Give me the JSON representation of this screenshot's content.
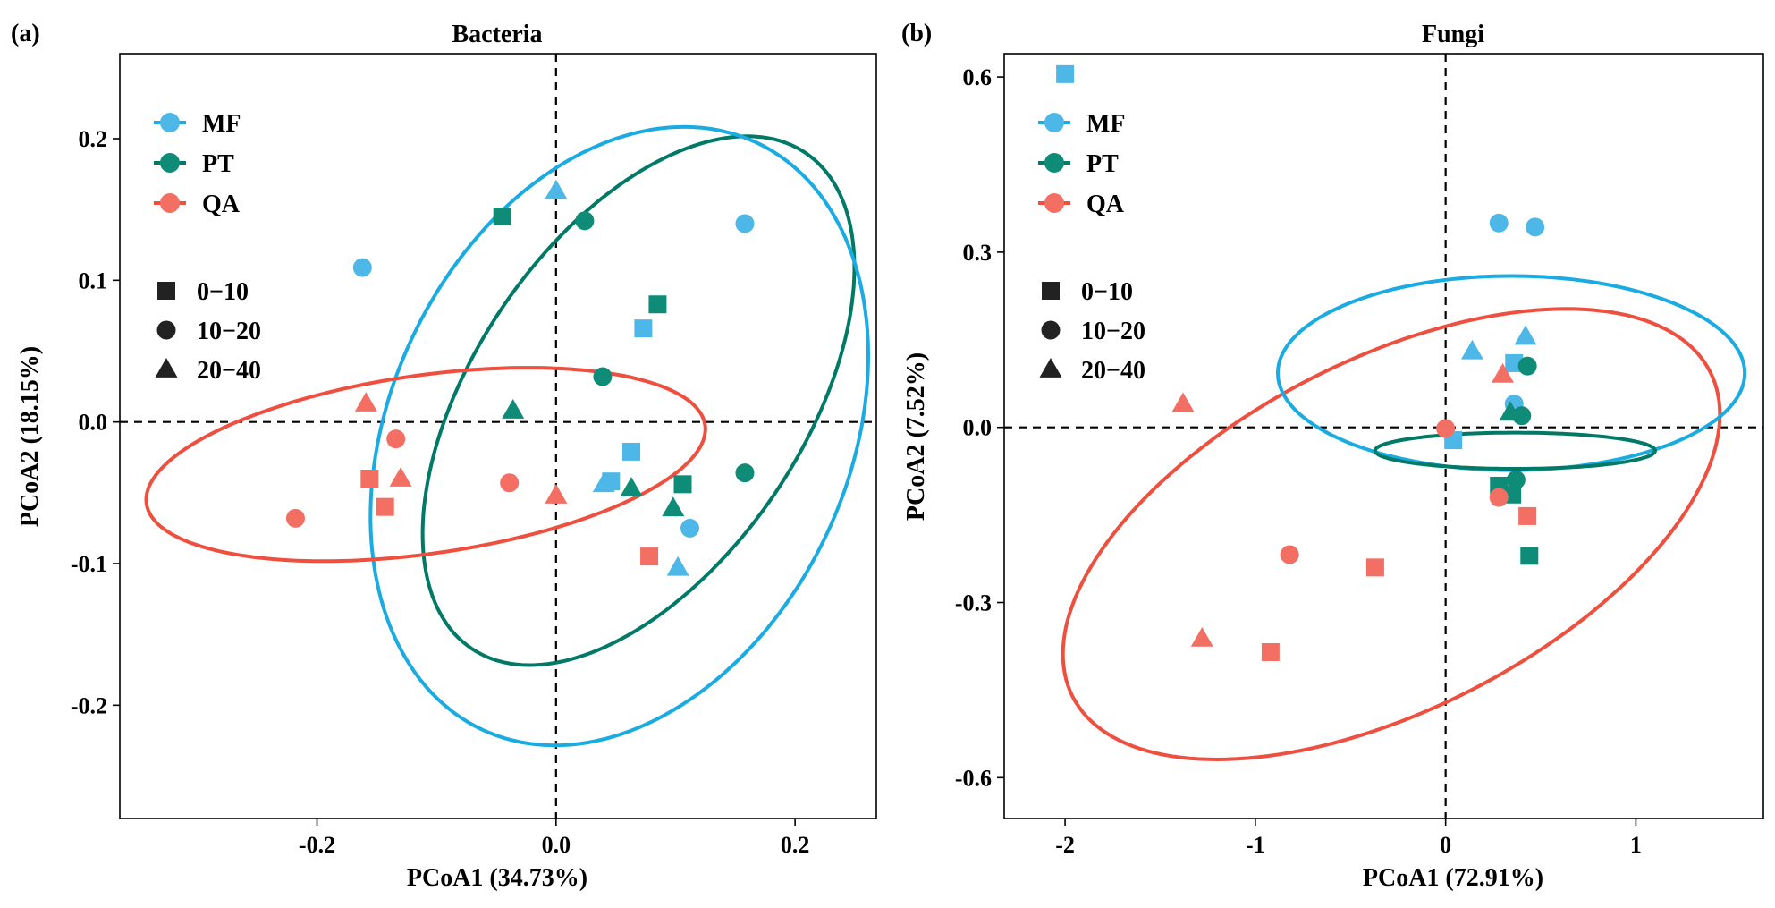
{
  "chart_data": [
    {
      "panel_label": "(a)",
      "title": "Bacteria",
      "type": "scatter",
      "xlabel": "PCoA1 (34.73%)",
      "ylabel": "PCoA2 (18.15%)",
      "xlim": [
        -0.365,
        0.268
      ],
      "ylim": [
        -0.28,
        0.26
      ],
      "xticks": [
        -0.2,
        0.0,
        0.2
      ],
      "xtick_labels": [
        "-0.2",
        "0.0",
        "0.2"
      ],
      "yticks": [
        -0.2,
        -0.1,
        0.0,
        0.1,
        0.2
      ],
      "ytick_labels": [
        "-0.2",
        "-0.1",
        "0.0",
        "0.1",
        "0.2"
      ],
      "reference_lines": {
        "x": 0,
        "y": 0
      },
      "legend_placement": "top-left",
      "groups": [
        {
          "name": "MF",
          "color": "#4DB8E8",
          "ellipse_color": "#1AABE2"
        },
        {
          "name": "PT",
          "color": "#0E8C78",
          "ellipse_color": "#007A66"
        },
        {
          "name": "QA",
          "color": "#F36F63",
          "ellipse_color": "#EF4F3F"
        }
      ],
      "depths": [
        {
          "name": "0−10",
          "shape": "square"
        },
        {
          "name": "10−20",
          "shape": "circle"
        },
        {
          "name": "20−40",
          "shape": "triangle"
        }
      ],
      "ellipses": [
        {
          "group": "PT",
          "cx": 0.069,
          "cy": 0.015,
          "rx": 0.25,
          "ry": 0.1165,
          "angle_deg": -56
        },
        {
          "group": "MF",
          "cx": 0.053,
          "cy": -0.01,
          "rx": 0.271,
          "ry": 0.162,
          "angle_deg": -65
        },
        {
          "group": "QA",
          "cx": -0.109,
          "cy": -0.03,
          "rx": 0.236,
          "ry": 0.063,
          "angle_deg": -8
        }
      ],
      "points": [
        {
          "group": "MF",
          "depth": "10−20",
          "x": -0.162,
          "y": 0.109
        },
        {
          "group": "MF",
          "depth": "20−40",
          "x": 0.0,
          "y": 0.163
        },
        {
          "group": "MF",
          "depth": "10−20",
          "x": 0.158,
          "y": 0.14
        },
        {
          "group": "MF",
          "depth": "0−10",
          "x": 0.073,
          "y": 0.066
        },
        {
          "group": "MF",
          "depth": "0−10",
          "x": 0.063,
          "y": -0.021
        },
        {
          "group": "MF",
          "depth": "20−40",
          "x": 0.04,
          "y": -0.044
        },
        {
          "group": "MF",
          "depth": "0−10",
          "x": 0.046,
          "y": -0.042
        },
        {
          "group": "MF",
          "depth": "10−20",
          "x": 0.112,
          "y": -0.075
        },
        {
          "group": "MF",
          "depth": "20−40",
          "x": 0.102,
          "y": -0.103
        },
        {
          "group": "PT",
          "depth": "0−10",
          "x": -0.045,
          "y": 0.145
        },
        {
          "group": "PT",
          "depth": "10−20",
          "x": 0.024,
          "y": 0.142
        },
        {
          "group": "PT",
          "depth": "0−10",
          "x": 0.085,
          "y": 0.083
        },
        {
          "group": "PT",
          "depth": "10−20",
          "x": 0.039,
          "y": 0.032
        },
        {
          "group": "PT",
          "depth": "20−40",
          "x": -0.036,
          "y": 0.008
        },
        {
          "group": "PT",
          "depth": "10−20",
          "x": 0.158,
          "y": -0.036
        },
        {
          "group": "PT",
          "depth": "0−10",
          "x": 0.106,
          "y": -0.044
        },
        {
          "group": "PT",
          "depth": "20−40",
          "x": 0.063,
          "y": -0.047
        },
        {
          "group": "PT",
          "depth": "20−40",
          "x": 0.098,
          "y": -0.061
        },
        {
          "group": "QA",
          "depth": "20−40",
          "x": -0.159,
          "y": 0.013
        },
        {
          "group": "QA",
          "depth": "10−20",
          "x": -0.134,
          "y": -0.012
        },
        {
          "group": "QA",
          "depth": "0−10",
          "x": -0.156,
          "y": -0.04
        },
        {
          "group": "QA",
          "depth": "20−40",
          "x": -0.13,
          "y": -0.04
        },
        {
          "group": "QA",
          "depth": "0−10",
          "x": -0.143,
          "y": -0.06
        },
        {
          "group": "QA",
          "depth": "10−20",
          "x": -0.218,
          "y": -0.068
        },
        {
          "group": "QA",
          "depth": "10−20",
          "x": -0.039,
          "y": -0.043
        },
        {
          "group": "QA",
          "depth": "20−40",
          "x": 0.0,
          "y": -0.052
        },
        {
          "group": "QA",
          "depth": "0−10",
          "x": 0.078,
          "y": -0.095
        }
      ]
    },
    {
      "panel_label": "(b)",
      "title": "Fungi",
      "type": "scatter",
      "xlabel": "PCoA1 (72.91%)",
      "ylabel": "PCoA2 (7.52%)",
      "xlim": [
        -2.32,
        1.67
      ],
      "ylim": [
        -0.67,
        0.64
      ],
      "xticks": [
        -2,
        -1,
        0,
        1
      ],
      "xtick_labels": [
        "-2",
        "-1",
        "0",
        "1"
      ],
      "yticks": [
        -0.6,
        -0.3,
        0.0,
        0.3,
        0.6
      ],
      "ytick_labels": [
        "-0.6",
        "-0.3",
        "0.0",
        "0.3",
        "0.6"
      ],
      "reference_lines": {
        "x": 0,
        "y": 0
      },
      "legend_placement": "top-left",
      "groups": [
        {
          "name": "MF",
          "color": "#4DB8E8",
          "ellipse_color": "#1AABE2"
        },
        {
          "name": "PT",
          "color": "#0E8C78",
          "ellipse_color": "#007A66"
        },
        {
          "name": "QA",
          "color": "#F36F63",
          "ellipse_color": "#EF4F3F"
        }
      ],
      "depths": [
        {
          "name": "0−10",
          "shape": "square"
        },
        {
          "name": "10−20",
          "shape": "circle"
        },
        {
          "name": "20−40",
          "shape": "triangle"
        }
      ],
      "ellipses": [
        {
          "group": "QA",
          "cx": -0.285,
          "cy": -0.183,
          "rx": 1.88,
          "ry": 0.3,
          "angle_deg": -27
        },
        {
          "group": "MF",
          "cx": 0.345,
          "cy": 0.093,
          "rx": 0.51,
          "ry": 0.4,
          "angle_deg": 90
        },
        {
          "group": "PT",
          "cx": 0.365,
          "cy": -0.04,
          "rx": 0.095,
          "ry": 0.24,
          "angle_deg": 90
        }
      ],
      "points": [
        {
          "group": "MF",
          "depth": "0−10",
          "x": -2.0,
          "y": 0.605
        },
        {
          "group": "MF",
          "depth": "10−20",
          "x": 0.28,
          "y": 0.35
        },
        {
          "group": "MF",
          "depth": "10−20",
          "x": 0.47,
          "y": 0.343
        },
        {
          "group": "MF",
          "depth": "20−40",
          "x": 0.14,
          "y": 0.13
        },
        {
          "group": "MF",
          "depth": "20−40",
          "x": 0.42,
          "y": 0.155
        },
        {
          "group": "MF",
          "depth": "0−10",
          "x": 0.36,
          "y": 0.11
        },
        {
          "group": "MF",
          "depth": "10−20",
          "x": 0.36,
          "y": 0.04
        },
        {
          "group": "MF",
          "depth": "0−10",
          "x": 0.04,
          "y": -0.022
        },
        {
          "group": "PT",
          "depth": "10−20",
          "x": 0.43,
          "y": 0.105
        },
        {
          "group": "PT",
          "depth": "20−40",
          "x": 0.34,
          "y": 0.025
        },
        {
          "group": "PT",
          "depth": "10−20",
          "x": 0.4,
          "y": 0.02
        },
        {
          "group": "PT",
          "depth": "0−10",
          "x": 0.28,
          "y": -0.1
        },
        {
          "group": "PT",
          "depth": "10−20",
          "x": 0.37,
          "y": -0.09
        },
        {
          "group": "PT",
          "depth": "0−10",
          "x": 0.35,
          "y": -0.115
        },
        {
          "group": "PT",
          "depth": "0−10",
          "x": 0.44,
          "y": -0.22
        },
        {
          "group": "QA",
          "depth": "20−40",
          "x": 0.3,
          "y": 0.09
        },
        {
          "group": "QA",
          "depth": "10−20",
          "x": 0.0,
          "y": -0.002
        },
        {
          "group": "QA",
          "depth": "10−20",
          "x": 0.28,
          "y": -0.12
        },
        {
          "group": "QA",
          "depth": "0−10",
          "x": 0.43,
          "y": -0.152
        },
        {
          "group": "QA",
          "depth": "20−40",
          "x": -1.38,
          "y": 0.04
        },
        {
          "group": "QA",
          "depth": "10−20",
          "x": -0.82,
          "y": -0.218
        },
        {
          "group": "QA",
          "depth": "0−10",
          "x": -0.37,
          "y": -0.24
        },
        {
          "group": "QA",
          "depth": "20−40",
          "x": -1.28,
          "y": -0.362
        },
        {
          "group": "QA",
          "depth": "0−10",
          "x": -0.92,
          "y": -0.385
        }
      ]
    }
  ]
}
